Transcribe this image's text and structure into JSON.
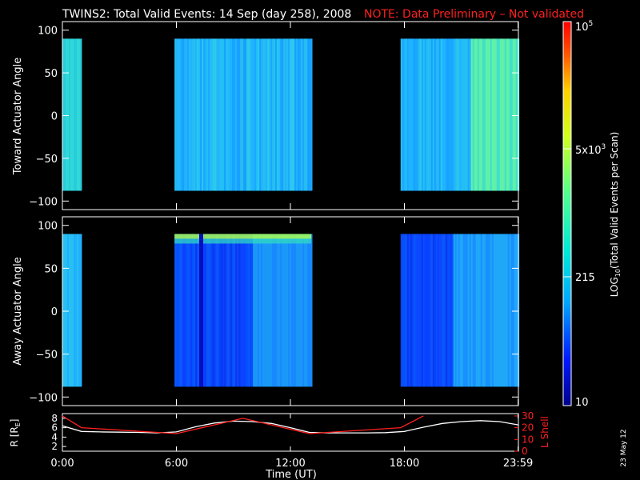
{
  "title": {
    "main": "TWINS2: Total Valid Events: 14 Sep (day 258), 2008",
    "note": "NOTE: Data Preliminary – Not validated"
  },
  "stamp": "23 May 12",
  "colors": {
    "background": "#000000",
    "text": "#ffffff",
    "note": "#ff2020",
    "l_shell_line": "#ff2020",
    "r_line": "#ffffff"
  },
  "chart_data": [
    {
      "type": "heatmap",
      "panel": "toward",
      "ylabel": "Toward Actuator Angle",
      "ylim": [
        -110,
        110
      ],
      "yticks": [
        100,
        50,
        0,
        -50,
        -100
      ],
      "data_range_y": [
        -88,
        90
      ],
      "x_range_hours": [
        0,
        24
      ],
      "data_intervals_hours": [
        [
          0.0,
          1.0
        ],
        [
          5.9,
          13.1
        ],
        [
          17.8,
          24.0
        ]
      ],
      "colorscale": "log",
      "approx_level": "~215 to 5x10^3"
    },
    {
      "type": "heatmap",
      "panel": "away",
      "ylabel": "Away Actuator Angle",
      "ylim": [
        -110,
        110
      ],
      "yticks": [
        100,
        50,
        0,
        -50,
        -100
      ],
      "data_range_y": [
        -88,
        90
      ],
      "x_range_hours": [
        0,
        24
      ],
      "data_intervals_hours": [
        [
          0.0,
          1.0
        ],
        [
          5.9,
          13.1
        ],
        [
          17.8,
          24.0
        ]
      ],
      "colorscale": "log",
      "approx_level": "~10 to 5x10^3"
    },
    {
      "type": "line",
      "panel": "orbit",
      "xlabel": "Time (UT)",
      "xticks": [
        "0:00",
        "6:00",
        "12:00",
        "18:00",
        "23:59"
      ],
      "xtick_hours": [
        0,
        6,
        12,
        18,
        23.983
      ],
      "ylabel_left": "R [RE]",
      "ylim_left": [
        1,
        9
      ],
      "yticks_left": [
        8,
        6,
        4,
        2
      ],
      "ylabel_right": "L Shell",
      "ylim_right": [
        0,
        32
      ],
      "yticks_right": [
        30,
        20,
        10,
        0
      ],
      "series": [
        {
          "axis": "left",
          "x": [
            0,
            1,
            2,
            3,
            4,
            5,
            6,
            7,
            8,
            9,
            10,
            11,
            12,
            13,
            14,
            15,
            16,
            17,
            18,
            19,
            20,
            21,
            22,
            23,
            24
          ],
          "y": [
            6.4,
            5.2,
            5.1,
            5.05,
            5.0,
            4.9,
            5.1,
            6.2,
            7.0,
            7.4,
            7.3,
            6.9,
            6.0,
            5.0,
            4.9,
            4.9,
            4.9,
            4.95,
            5.2,
            6.1,
            6.9,
            7.3,
            7.5,
            7.3,
            6.6
          ]
        },
        {
          "axis": "right",
          "x": [
            0,
            1,
            6,
            9.5,
            13,
            17.8,
            19
          ],
          "y": [
            30,
            20,
            15,
            28,
            15,
            20,
            30
          ]
        }
      ]
    },
    {
      "type": "colorbar",
      "label": "LOG10(Total Valid Events per Scan)",
      "tick_labels": [
        "10",
        "215",
        "5x10^3",
        "10^5"
      ],
      "tick_values": [
        10,
        215,
        5000,
        100000
      ],
      "range": [
        10,
        100000
      ],
      "colormap": [
        "#00008c",
        "#0018ff",
        "#00a8ff",
        "#00e8d8",
        "#50ff90",
        "#d0ff20",
        "#ffd000",
        "#ff5000",
        "#ff0000"
      ]
    }
  ],
  "labels": {
    "colorbar_10": "10",
    "colorbar_215": "215",
    "colorbar_5e3_base": "5x10",
    "colorbar_5e3_exp": "3",
    "colorbar_1e5_base": "10",
    "colorbar_1e5_exp": "5",
    "colorbar_label_pre": "LOG",
    "colorbar_label_sub": "10",
    "colorbar_label_post": "(Total Valid Events per Scan)",
    "r_label_pre": "R [R",
    "r_label_sub": "E",
    "r_label_post": "]",
    "l_shell": "L Shell",
    "toward": "Toward Actuator Angle",
    "away": "Away Actuator Angle",
    "time": "Time (UT)"
  }
}
